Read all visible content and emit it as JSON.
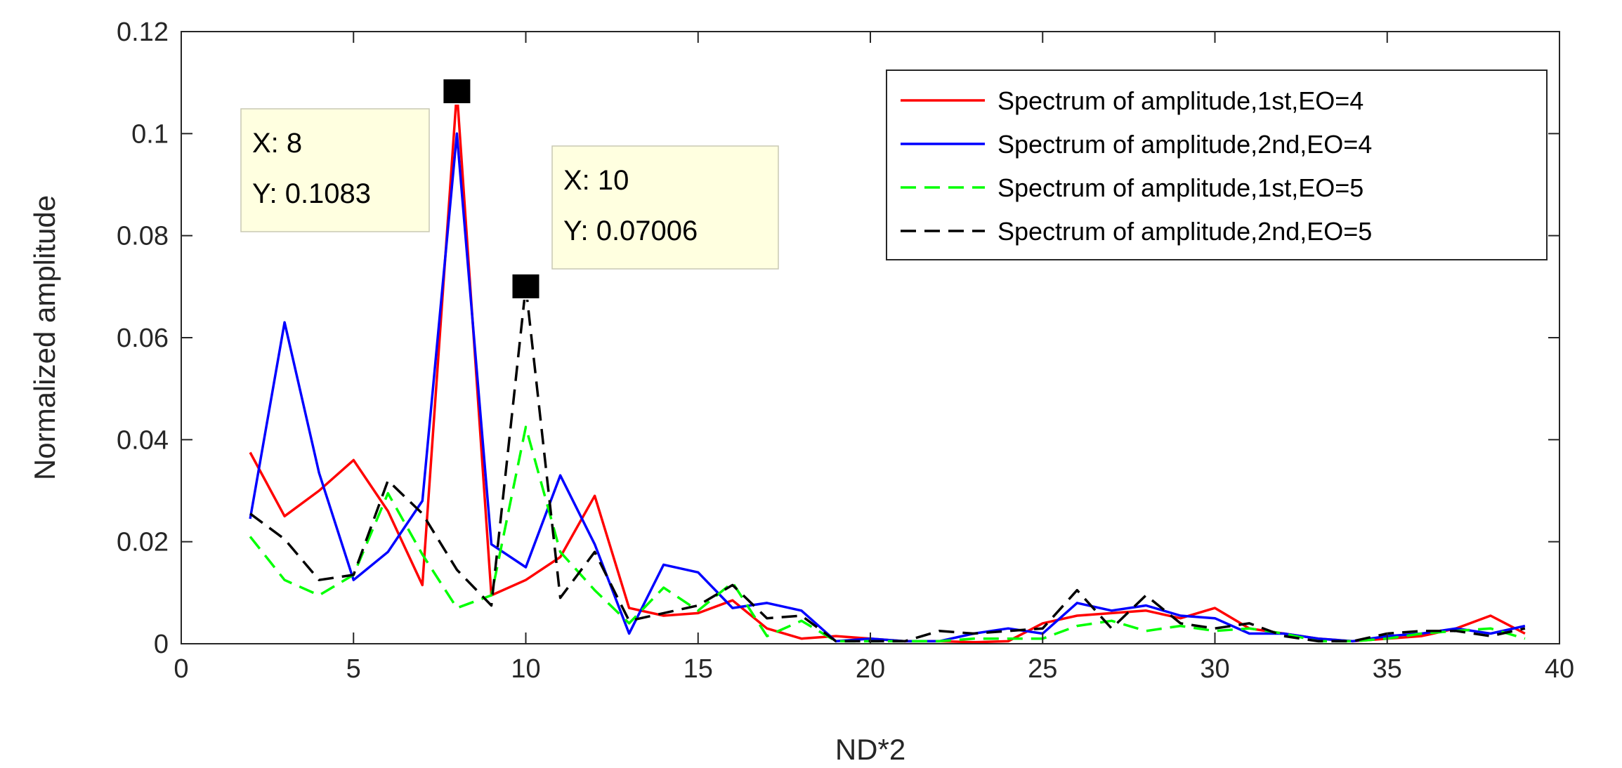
{
  "chart_data": {
    "type": "line",
    "title": "",
    "xlabel": "ND*2",
    "ylabel": "Normalized amplitude",
    "xlim": [
      0,
      40
    ],
    "ylim": [
      0,
      0.12
    ],
    "xticks": [
      0,
      5,
      10,
      15,
      20,
      25,
      30,
      35,
      40
    ],
    "yticks": [
      0,
      0.02,
      0.04,
      0.06,
      0.08,
      0.1,
      0.12
    ],
    "xtick_labels": [
      "0",
      "5",
      "10",
      "15",
      "20",
      "25",
      "30",
      "35",
      "40"
    ],
    "ytick_labels": [
      "0",
      "0.02",
      "0.04",
      "0.06",
      "0.08",
      "0.1",
      "0.12"
    ],
    "legend_position": "top-right",
    "x": [
      2,
      3,
      4,
      5,
      6,
      7,
      8,
      9,
      10,
      11,
      12,
      13,
      14,
      15,
      16,
      17,
      18,
      19,
      20,
      21,
      22,
      23,
      24,
      25,
      26,
      27,
      28,
      29,
      30,
      31,
      32,
      33,
      34,
      35,
      36,
      37,
      38,
      39
    ],
    "series": [
      {
        "name": "Spectrum of amplitude,1st,EO=4",
        "color": "#ff0000",
        "style": "solid",
        "values": [
          0.0375,
          0.025,
          0.03,
          0.036,
          0.026,
          0.0115,
          0.1083,
          0.0095,
          0.0125,
          0.017,
          0.029,
          0.007,
          0.0055,
          0.006,
          0.0085,
          0.003,
          0.001,
          0.0015,
          0.001,
          0.0005,
          0.0005,
          0.0003,
          0.0005,
          0.004,
          0.0055,
          0.006,
          0.0065,
          0.005,
          0.007,
          0.003,
          0.002,
          0.001,
          0.0005,
          0.001,
          0.0015,
          0.003,
          0.0055,
          0.002
        ]
      },
      {
        "name": "Spectrum of amplitude,2nd,EO=4",
        "color": "#0000ff",
        "style": "solid",
        "values": [
          0.0245,
          0.063,
          0.0335,
          0.0125,
          0.018,
          0.028,
          0.1,
          0.0195,
          0.015,
          0.033,
          0.0195,
          0.002,
          0.0155,
          0.014,
          0.007,
          0.008,
          0.0065,
          0.0005,
          0.001,
          0.0005,
          0.0005,
          0.002,
          0.003,
          0.002,
          0.008,
          0.0065,
          0.0075,
          0.0055,
          0.005,
          0.002,
          0.002,
          0.001,
          0.0005,
          0.0015,
          0.002,
          0.003,
          0.002,
          0.0035
        ]
      },
      {
        "name": "Spectrum of amplitude,1st,EO=5",
        "color": "#00ff00",
        "style": "dashed",
        "values": [
          0.021,
          0.0125,
          0.0095,
          0.0135,
          0.0295,
          0.0175,
          0.007,
          0.0095,
          0.0425,
          0.018,
          0.0105,
          0.004,
          0.011,
          0.0065,
          0.012,
          0.0015,
          0.0045,
          0.0005,
          0.0005,
          0.0005,
          0.0005,
          0.001,
          0.001,
          0.001,
          0.0035,
          0.0045,
          0.0025,
          0.0035,
          0.0025,
          0.003,
          0.002,
          0.0005,
          0.0005,
          0.001,
          0.002,
          0.0025,
          0.003,
          0.001
        ]
      },
      {
        "name": "Spectrum of amplitude,2nd,EO=5",
        "color": "#000000",
        "style": "dashed",
        "values": [
          0.0255,
          0.0205,
          0.0125,
          0.0135,
          0.032,
          0.0255,
          0.0145,
          0.0075,
          0.07006,
          0.009,
          0.018,
          0.0045,
          0.006,
          0.0075,
          0.0115,
          0.005,
          0.0055,
          0.0005,
          0.0005,
          0.0005,
          0.0025,
          0.002,
          0.0025,
          0.003,
          0.0105,
          0.003,
          0.0095,
          0.004,
          0.003,
          0.004,
          0.0015,
          0.0005,
          0.0005,
          0.002,
          0.0025,
          0.0025,
          0.0015,
          0.003
        ]
      }
    ],
    "datatips": [
      {
        "x": 8,
        "y": 0.1083,
        "x_text": "X: 8",
        "y_text": "Y: 0.1083"
      },
      {
        "x": 10,
        "y": 0.07006,
        "x_text": "X: 10",
        "y_text": "Y: 0.07006"
      }
    ]
  }
}
